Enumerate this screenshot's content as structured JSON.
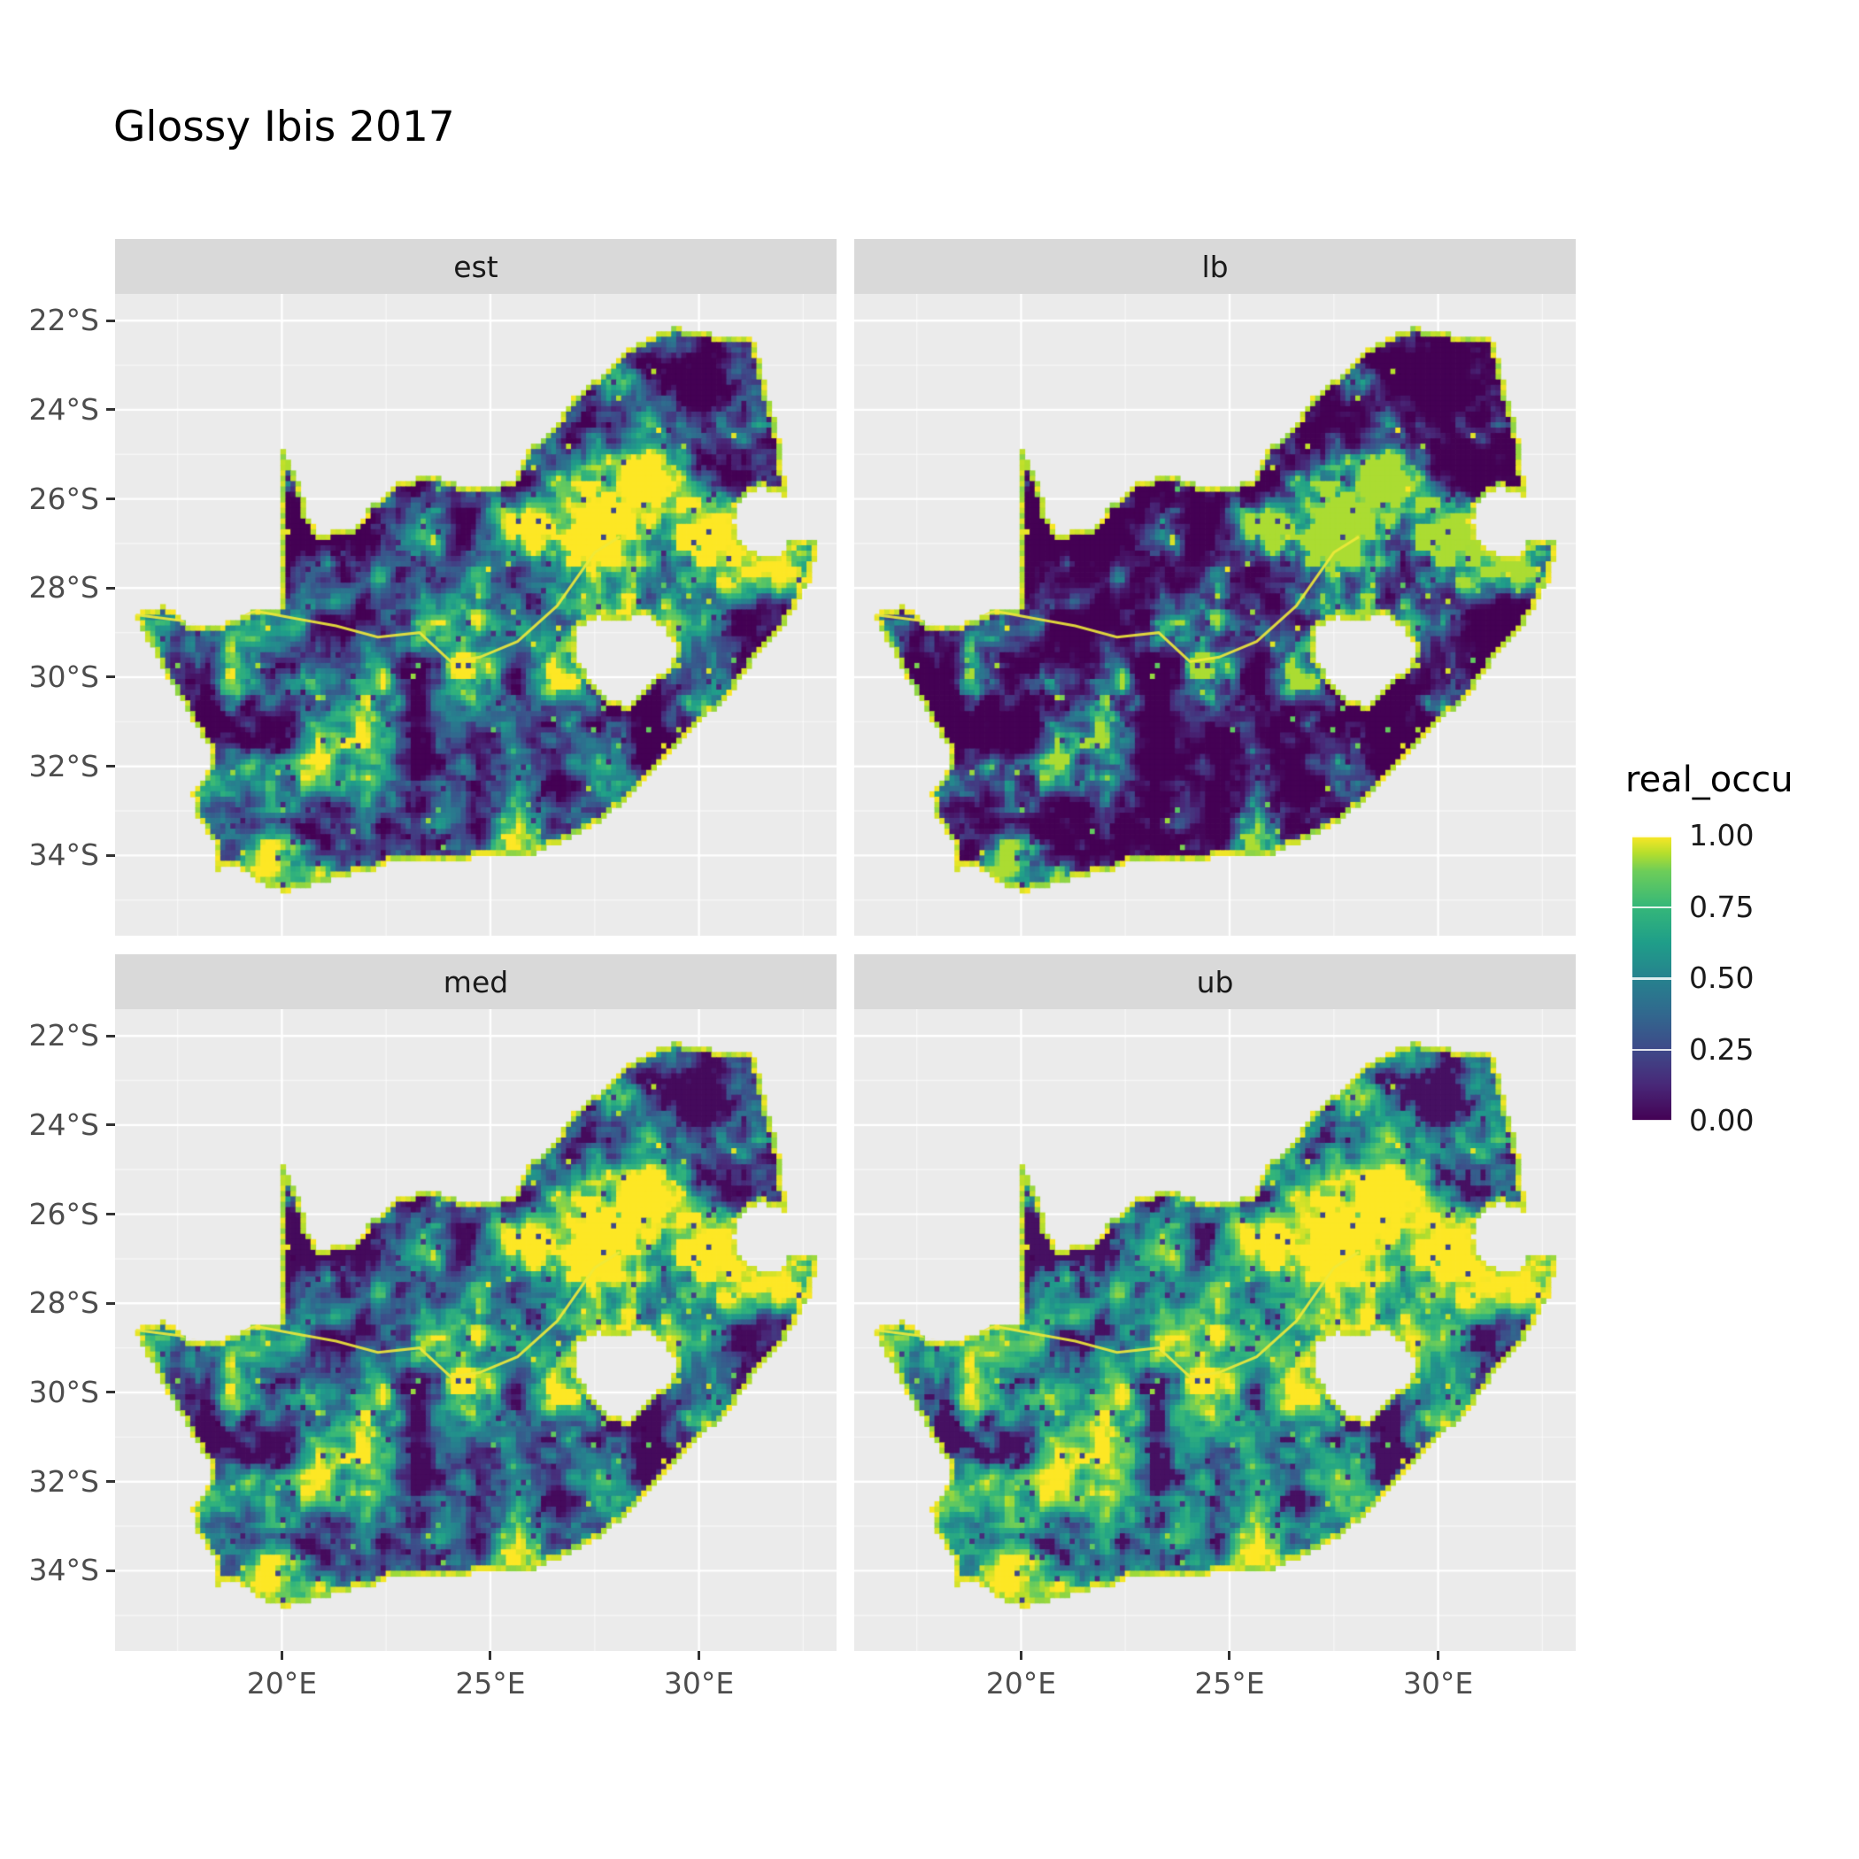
{
  "title": "Glossy Ibis 2017",
  "legend": {
    "title": "real_occu",
    "labels": [
      "1.00",
      "0.75",
      "0.50",
      "0.25",
      "0.00"
    ],
    "tick_values": [
      1,
      0.75,
      0.5,
      0.25,
      0
    ],
    "stops": [
      {
        "v": 0,
        "c": "#440154"
      },
      {
        "v": 0.125,
        "c": "#482878"
      },
      {
        "v": 0.25,
        "c": "#3E4A89"
      },
      {
        "v": 0.375,
        "c": "#31688E"
      },
      {
        "v": 0.5,
        "c": "#26828E"
      },
      {
        "v": 0.625,
        "c": "#1F9E89"
      },
      {
        "v": 0.75,
        "c": "#35B779"
      },
      {
        "v": 0.875,
        "c": "#6DCD59"
      },
      {
        "v": 0.9375,
        "c": "#B4DE2C"
      },
      {
        "v": 1,
        "c": "#FDE725"
      }
    ]
  },
  "colors": {
    "page_bg": "#FFFFFF",
    "panel_bg": "#EBEBEB",
    "strip_bg": "#D9D9D9",
    "grid_major": "#FFFFFF",
    "axis_text": "#4D4D4D",
    "tick_mark": "#333333",
    "title_text": "#000000",
    "river": "#EFE93A"
  },
  "chart_data": {
    "type": "heatmap",
    "title": "Glossy Ibis 2017",
    "legend_title": "real_occu",
    "value_label": "real_occu",
    "value_range": [
      0,
      1
    ],
    "facets": [
      {
        "label": "est",
        "pow": 1.1,
        "mul": 1.0,
        "add": 0.0
      },
      {
        "label": "lb",
        "pow": 2.2,
        "mul": 0.97,
        "add": -0.04
      },
      {
        "label": "med",
        "pow": 1.0,
        "mul": 1.0,
        "add": 0.03
      },
      {
        "label": "ub",
        "pow": 0.62,
        "mul": 1.0,
        "add": 0.05
      }
    ],
    "x_axis": {
      "labels": [
        "20°E",
        "25°E",
        "30°E"
      ],
      "values": [
        20,
        25,
        30
      ],
      "minor": [
        17.5,
        22.5,
        27.5,
        32.5
      ]
    },
    "y_axis": {
      "labels": [
        "22°S",
        "24°S",
        "26°S",
        "28°S",
        "30°S",
        "32°S",
        "34°S"
      ],
      "values": [
        -22,
        -24,
        -26,
        -28,
        -30,
        -32,
        -34
      ],
      "minor": [
        -23,
        -25,
        -27,
        -29,
        -31,
        -33,
        -35
      ]
    },
    "lon_range": [
      16.0,
      33.3
    ],
    "lat_range": [
      -35.8,
      -21.4
    ],
    "cell_deg": 0.12,
    "field": {
      "seed": 11,
      "bias": 0.48,
      "contrast": 2.2,
      "octave_freqs": [
        0.9,
        2.2,
        5.2
      ],
      "octave_weights": [
        0.5,
        0.3,
        0.2
      ],
      "speckle_hi": 0.012,
      "speckle_lo": 0.03,
      "bumps": [
        {
          "lon": 28.15,
          "lat": -26.3,
          "s": 1.25,
          "amp": 0.55
        },
        {
          "lon": 26.7,
          "lat": -27.6,
          "s": 1.6,
          "amp": 0.2
        },
        {
          "lon": 19.2,
          "lat": -33.8,
          "s": 0.9,
          "amp": 0.4
        },
        {
          "lon": 24.6,
          "lat": -29.3,
          "s": 1.8,
          "amp": 0.18
        },
        {
          "lon": 29.8,
          "lat": -26.5,
          "s": 0.9,
          "amp": 0.25
        },
        {
          "lon": 20.9,
          "lat": -26.3,
          "s": 2.2,
          "amp": -0.5
        },
        {
          "lon": 29.9,
          "lat": -23.0,
          "s": 1.4,
          "amp": -0.3
        },
        {
          "lon": 31.3,
          "lat": -24.6,
          "s": 1.1,
          "amp": -0.28
        },
        {
          "lon": 29.3,
          "lat": -31.3,
          "s": 1.3,
          "amp": -0.22
        },
        {
          "lon": 17.8,
          "lat": -30.3,
          "s": 1.2,
          "amp": -0.25
        }
      ]
    },
    "map": {
      "outer": [
        [
          16.45,
          -28.58
        ],
        [
          17.2,
          -28.4
        ],
        [
          17.7,
          -28.78
        ],
        [
          18.5,
          -28.87
        ],
        [
          19.3,
          -28.5
        ],
        [
          19.99,
          -28.42
        ],
        [
          19.99,
          -24.77
        ],
        [
          20.35,
          -25.5
        ],
        [
          20.64,
          -26.45
        ],
        [
          20.85,
          -26.8
        ],
        [
          21.7,
          -26.65
        ],
        [
          22.1,
          -26.2
        ],
        [
          22.85,
          -25.6
        ],
        [
          23.6,
          -25.45
        ],
        [
          24.4,
          -25.75
        ],
        [
          25.1,
          -25.72
        ],
        [
          25.6,
          -25.55
        ],
        [
          25.9,
          -24.9
        ],
        [
          26.5,
          -24.45
        ],
        [
          26.95,
          -23.75
        ],
        [
          27.6,
          -23.25
        ],
        [
          28.3,
          -22.65
        ],
        [
          29.05,
          -22.25
        ],
        [
          29.45,
          -22.16
        ],
        [
          30.3,
          -22.3
        ],
        [
          31.3,
          -22.42
        ],
        [
          31.6,
          -23.55
        ],
        [
          31.85,
          -24.35
        ],
        [
          32.0,
          -25.1
        ],
        [
          32.05,
          -25.95
        ],
        [
          31.4,
          -25.73
        ],
        [
          30.95,
          -26.0
        ],
        [
          30.8,
          -26.45
        ],
        [
          30.85,
          -26.85
        ],
        [
          31.2,
          -27.2
        ],
        [
          31.98,
          -27.32
        ],
        [
          32.15,
          -26.86
        ],
        [
          32.88,
          -26.86
        ],
        [
          32.6,
          -27.9
        ],
        [
          32.1,
          -28.7
        ],
        [
          31.4,
          -29.45
        ],
        [
          30.7,
          -30.4
        ],
        [
          29.9,
          -31.1
        ],
        [
          29.2,
          -31.75
        ],
        [
          28.4,
          -32.6
        ],
        [
          27.6,
          -33.25
        ],
        [
          26.8,
          -33.65
        ],
        [
          26.0,
          -33.95
        ],
        [
          25.65,
          -34.0
        ],
        [
          25.0,
          -33.98
        ],
        [
          24.2,
          -34.1
        ],
        [
          23.4,
          -34.1
        ],
        [
          22.6,
          -34.15
        ],
        [
          22.1,
          -34.35
        ],
        [
          21.4,
          -34.45
        ],
        [
          20.6,
          -34.7
        ],
        [
          20.0,
          -34.82
        ],
        [
          19.5,
          -34.62
        ],
        [
          19.1,
          -34.35
        ],
        [
          18.82,
          -34.18
        ],
        [
          18.47,
          -34.35
        ],
        [
          18.33,
          -34.0
        ],
        [
          18.4,
          -33.72
        ],
        [
          17.95,
          -33.1
        ],
        [
          17.85,
          -32.6
        ],
        [
          18.25,
          -32.1
        ],
        [
          18.25,
          -31.55
        ],
        [
          17.7,
          -30.7
        ],
        [
          17.25,
          -30.0
        ],
        [
          16.9,
          -29.35
        ]
      ],
      "lesotho_hole": [
        [
          27.05,
          -28.9
        ],
        [
          27.55,
          -28.65
        ],
        [
          28.15,
          -28.7
        ],
        [
          28.7,
          -28.6
        ],
        [
          29.15,
          -28.9
        ],
        [
          29.45,
          -29.3
        ],
        [
          29.3,
          -29.75
        ],
        [
          28.85,
          -30.1
        ],
        [
          28.25,
          -30.65
        ],
        [
          27.75,
          -30.45
        ],
        [
          27.35,
          -30.0
        ],
        [
          27.0,
          -29.55
        ]
      ],
      "river": [
        [
          16.5,
          -28.6
        ],
        [
          17.9,
          -28.77
        ],
        [
          19.4,
          -28.52
        ],
        [
          20.3,
          -28.68
        ],
        [
          21.3,
          -28.85
        ],
        [
          22.3,
          -29.1
        ],
        [
          23.3,
          -29.0
        ],
        [
          24.05,
          -29.65
        ],
        [
          24.75,
          -29.55
        ],
        [
          25.65,
          -29.2
        ],
        [
          26.6,
          -28.4
        ],
        [
          27.5,
          -27.2
        ],
        [
          28.1,
          -26.85
        ]
      ]
    }
  }
}
